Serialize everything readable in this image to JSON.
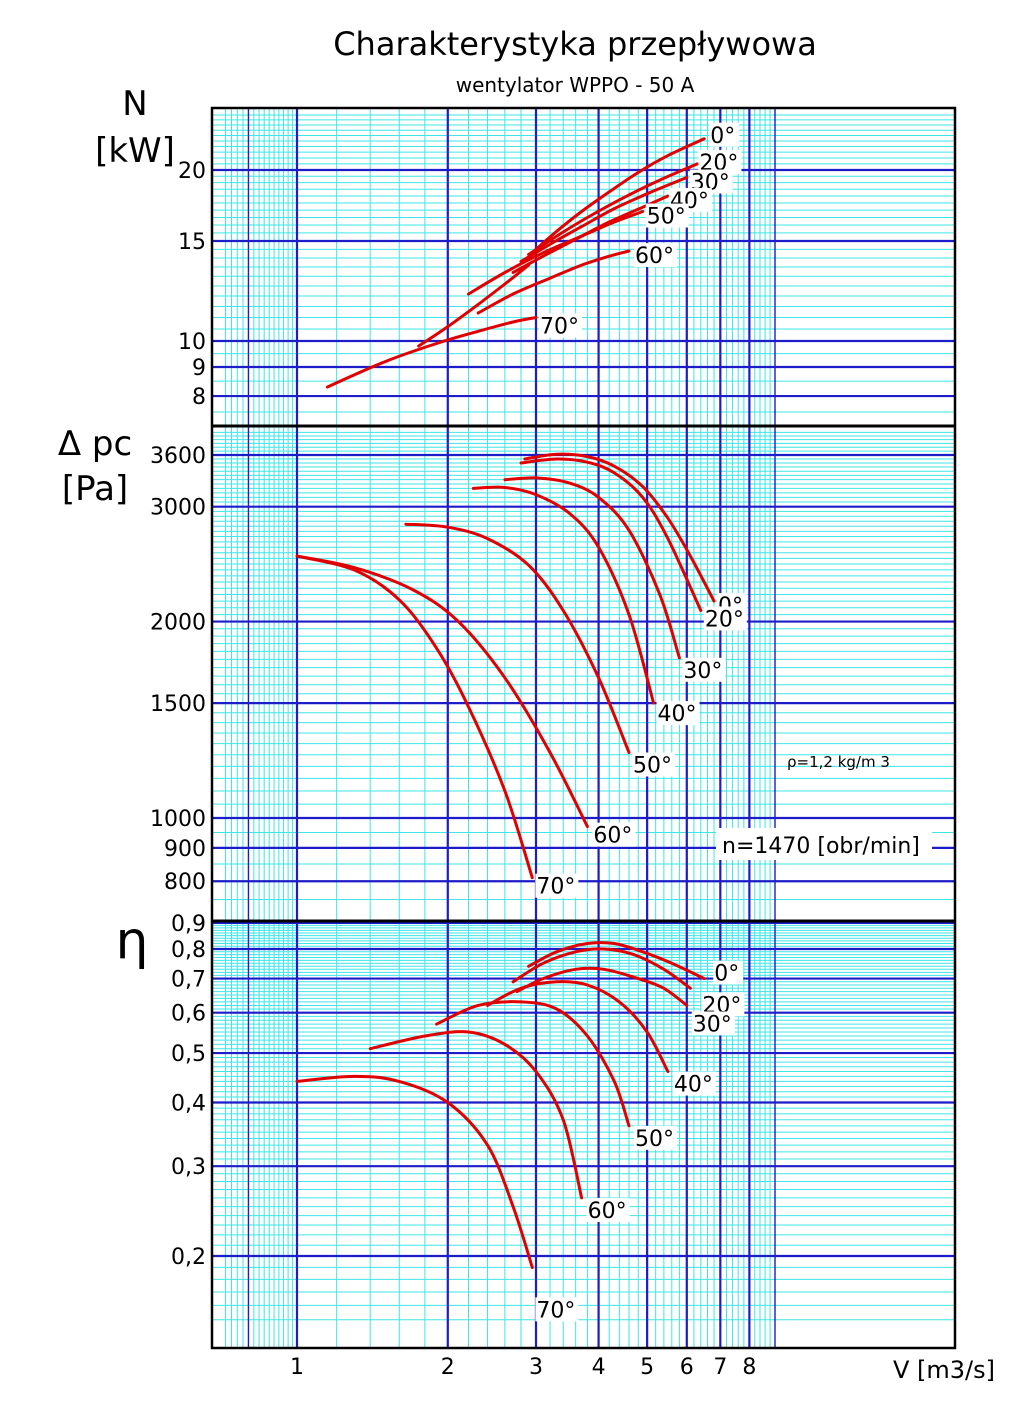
{
  "title": "Charakterystyka przepływowa",
  "subtitle": "wentylator WPPO - 50 A",
  "colors": {
    "curve": "#e00000",
    "major_grid": "#1c1cc8",
    "minor_grid": "#3ee6e6",
    "frame": "#000000"
  },
  "chart_data": [
    {
      "type": "line",
      "panel": "power",
      "ylabel_symbol": "N",
      "ylabel_unit": "[kW]",
      "xlabel": "V [m3/s]",
      "x_scale": "log",
      "y_scale": "log",
      "xlim": [
        0.7,
        9
      ],
      "ylim": [
        7,
        25
      ],
      "x_ticks": [
        "1",
        "2",
        "3",
        "4",
        "5",
        "6",
        "7",
        "8"
      ],
      "y_ticks": [
        "20",
        "15",
        "10",
        "9",
        "8"
      ],
      "series": [
        {
          "name": "0°",
          "x": [
            3.0,
            3.3,
            3.7,
            4.2,
            4.8,
            5.5,
            6.5
          ],
          "y": [
            14.5,
            15.6,
            16.9,
            18.3,
            19.8,
            21.2,
            22.7
          ]
        },
        {
          "name": "20°",
          "x": [
            2.9,
            3.3,
            3.8,
            4.5,
            5.3,
            6.3
          ],
          "y": [
            14.2,
            15.3,
            16.5,
            17.9,
            19.2,
            20.5
          ]
        },
        {
          "name": "30°",
          "x": [
            2.8,
            3.2,
            3.7,
            4.3,
            5.1,
            6.0
          ],
          "y": [
            13.8,
            14.8,
            15.9,
            17.1,
            18.3,
            19.4
          ]
        },
        {
          "name": "40°",
          "x": [
            2.7,
            3.1,
            3.6,
            4.2,
            4.9,
            5.5
          ],
          "y": [
            13.2,
            14.1,
            15.1,
            16.2,
            17.2,
            18.0
          ]
        },
        {
          "name": "50°",
          "x": [
            2.2,
            2.6,
            3.1,
            3.7,
            4.3,
            4.9
          ],
          "y": [
            12.1,
            13.2,
            14.3,
            15.3,
            16.2,
            16.9
          ]
        },
        {
          "name": "60°",
          "x": [
            2.3,
            2.7,
            3.2,
            3.7,
            4.2,
            4.6
          ],
          "y": [
            11.2,
            12.1,
            12.9,
            13.6,
            14.1,
            14.4
          ]
        },
        {
          "name": "70°",
          "x": [
            1.15,
            1.5,
            1.9,
            2.3,
            2.7,
            3.0
          ],
          "y": [
            8.3,
            9.2,
            9.9,
            10.4,
            10.8,
            11.0
          ]
        }
      ],
      "extra_series": [
        {
          "x": [
            1.75,
            2.0,
            2.3,
            2.6,
            2.9
          ],
          "y": [
            9.8,
            10.6,
            11.6,
            12.6,
            13.6
          ]
        }
      ]
    },
    {
      "type": "line",
      "panel": "pressure",
      "ylabel_symbol": "Δ pc",
      "ylabel_unit": "[Pa]",
      "x_scale": "log",
      "y_scale": "log",
      "xlim": [
        0.7,
        9
      ],
      "ylim": [
        730,
        3900
      ],
      "y_ticks": [
        "3600",
        "3000",
        "2000",
        "1500",
        "1000",
        "900",
        "800"
      ],
      "annotations": [
        "ρ=1,2 kg/m 3",
        "n=1470 [obr/min]"
      ],
      "series": [
        {
          "name": "0°",
          "x": [
            2.85,
            3.3,
            3.8,
            4.3,
            4.9,
            5.5,
            6.1,
            6.8
          ],
          "y": [
            3550,
            3610,
            3580,
            3460,
            3220,
            2880,
            2520,
            2150
          ]
        },
        {
          "name": "20°",
          "x": [
            2.8,
            3.3,
            3.8,
            4.3,
            4.9,
            5.5,
            6.4
          ],
          "y": [
            3500,
            3550,
            3510,
            3380,
            3100,
            2680,
            2080
          ]
        },
        {
          "name": "30°",
          "x": [
            2.6,
            3.0,
            3.5,
            4.0,
            4.6,
            5.3,
            5.8
          ],
          "y": [
            3300,
            3320,
            3260,
            3100,
            2760,
            2200,
            1760
          ]
        },
        {
          "name": "40°",
          "x": [
            2.25,
            2.6,
            3.0,
            3.5,
            4.0,
            4.6,
            5.15
          ],
          "y": [
            3200,
            3210,
            3130,
            2930,
            2600,
            2050,
            1500
          ]
        },
        {
          "name": "50°",
          "x": [
            1.65,
            2.0,
            2.4,
            2.9,
            3.4,
            4.0,
            4.6
          ],
          "y": [
            2820,
            2790,
            2680,
            2440,
            2080,
            1640,
            1260
          ]
        },
        {
          "name": "60°",
          "x": [
            1.0,
            1.3,
            1.7,
            2.1,
            2.6,
            3.2,
            3.8
          ],
          "y": [
            2520,
            2420,
            2240,
            2000,
            1640,
            1260,
            970
          ]
        },
        {
          "name": "70°",
          "x": [
            1.0,
            1.3,
            1.6,
            1.9,
            2.2,
            2.6,
            2.95
          ],
          "y": [
            2520,
            2400,
            2160,
            1820,
            1480,
            1100,
            810
          ]
        }
      ]
    },
    {
      "type": "line",
      "panel": "efficiency",
      "ylabel_symbol": "η",
      "x_scale": "log",
      "y_scale": "log",
      "xlim": [
        0.7,
        9
      ],
      "ylim": [
        0.15,
        0.9
      ],
      "y_ticks": [
        "0,9",
        "0,8",
        "0,7",
        "0,6",
        "0,5",
        "0,4",
        "0,3",
        "0,2"
      ],
      "series": [
        {
          "name": "0°",
          "x": [
            2.9,
            3.3,
            3.8,
            4.3,
            4.9,
            5.6,
            6.5
          ],
          "y": [
            0.74,
            0.79,
            0.82,
            0.82,
            0.79,
            0.75,
            0.7
          ]
        },
        {
          "name": "20°",
          "x": [
            2.7,
            3.1,
            3.6,
            4.1,
            4.7,
            5.4,
            6.1
          ],
          "y": [
            0.69,
            0.75,
            0.79,
            0.8,
            0.78,
            0.73,
            0.67
          ]
        },
        {
          "name": "30°",
          "x": [
            2.75,
            3.1,
            3.6,
            4.1,
            4.8,
            5.4,
            6.0
          ],
          "y": [
            0.66,
            0.7,
            0.73,
            0.73,
            0.7,
            0.67,
            0.62
          ]
        },
        {
          "name": "40°",
          "x": [
            2.4,
            2.8,
            3.3,
            3.8,
            4.4,
            5.0,
            5.5
          ],
          "y": [
            0.62,
            0.67,
            0.69,
            0.68,
            0.63,
            0.55,
            0.46
          ]
        },
        {
          "name": "50°",
          "x": [
            1.9,
            2.3,
            2.8,
            3.3,
            3.8,
            4.3,
            4.6
          ],
          "y": [
            0.57,
            0.62,
            0.63,
            0.61,
            0.54,
            0.44,
            0.36
          ]
        },
        {
          "name": "60°",
          "x": [
            1.4,
            1.8,
            2.2,
            2.6,
            3.0,
            3.4,
            3.7
          ],
          "y": [
            0.51,
            0.54,
            0.55,
            0.52,
            0.46,
            0.37,
            0.26
          ]
        },
        {
          "name": "70°",
          "x": [
            1.0,
            1.3,
            1.6,
            2.0,
            2.4,
            2.7,
            2.95
          ],
          "y": [
            0.44,
            0.45,
            0.44,
            0.4,
            0.33,
            0.25,
            0.19
          ]
        }
      ]
    }
  ]
}
